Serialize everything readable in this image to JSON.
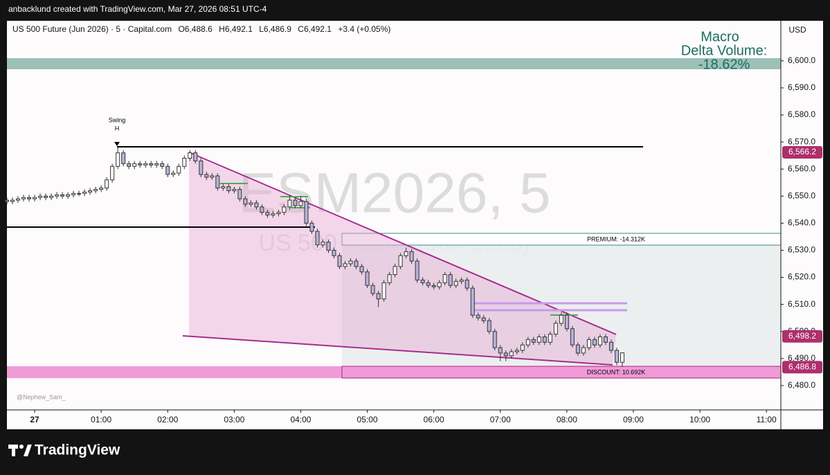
{
  "header": {
    "credit": "anbacklund created with TradingView.com, Mar 27, 2026 08:51 UTC-4"
  },
  "symbol_bar": {
    "symbol": "US 500 Future (Jun 2026) · 5 · Capital.com",
    "open": "O6,488.6",
    "high": "H6,492.1",
    "low": "L6,486.9",
    "close": "C6,492.1",
    "change": "+3.4 (+0.05%)"
  },
  "currency": "USD",
  "watermark": {
    "ticker": "ESM2026, 5",
    "name": "US 500 Future (Jun 2026)"
  },
  "indicator": {
    "line1": "Macro",
    "line2": "Delta Volume:",
    "line3": "-18.62%"
  },
  "labels": {
    "swing1": "Swing",
    "swing2": "H",
    "premium": "PREMIUM: -14.312K",
    "discount": "DISCOUNT: 10.692K",
    "author": "@Nephew_Sam_"
  },
  "footer": {
    "brand": "TradingView"
  },
  "chart_data": {
    "type": "candlestick",
    "xlim": [
      -25,
      673
    ],
    "ylim": [
      6471,
      6614.8
    ],
    "xticks": [
      {
        "value": 0,
        "label": "27"
      },
      {
        "value": 60,
        "label": "01:00"
      },
      {
        "value": 120,
        "label": "02:00"
      },
      {
        "value": 180,
        "label": "03:00"
      },
      {
        "value": 240,
        "label": "04:00"
      },
      {
        "value": 300,
        "label": "05:00"
      },
      {
        "value": 360,
        "label": "06:00"
      },
      {
        "value": 420,
        "label": "07:00"
      },
      {
        "value": 480,
        "label": "08:00"
      },
      {
        "value": 540,
        "label": "09:00"
      },
      {
        "value": 600,
        "label": "10:00"
      },
      {
        "value": 660,
        "label": "11:00"
      }
    ],
    "yticks": [
      {
        "value": 6480,
        "label": "6,480.0"
      },
      {
        "value": 6490,
        "label": "6,490.0"
      },
      {
        "value": 6500,
        "label": "6,500.0"
      },
      {
        "value": 6510,
        "label": "6,510.0"
      },
      {
        "value": 6520,
        "label": "6,520.0"
      },
      {
        "value": 6530,
        "label": "6,530.0"
      },
      {
        "value": 6540,
        "label": "6,540.0"
      },
      {
        "value": 6550,
        "label": "6,550.0"
      },
      {
        "value": 6560,
        "label": "6,560.0"
      },
      {
        "value": 6570,
        "label": "6,570.0"
      },
      {
        "value": 6580,
        "label": "6,580.0"
      },
      {
        "value": 6590,
        "label": "6,590.0"
      },
      {
        "value": 6600,
        "label": "6,600.0"
      }
    ],
    "price_tags": [
      {
        "value": 6566.2,
        "label": "6,566.2"
      },
      {
        "value": 6498.2,
        "label": "6,498.2"
      },
      {
        "value": 6486.8,
        "label": "6,486.8"
      }
    ],
    "tag_color": "#ad2f6b",
    "up_color": "#ffffff",
    "down_color": "#b7b3d9",
    "x": [
      -25,
      -20,
      -15,
      -10,
      -5,
      0,
      5,
      10,
      15,
      20,
      25,
      30,
      35,
      40,
      45,
      50,
      55,
      60,
      65,
      70,
      75,
      80,
      85,
      90,
      95,
      100,
      105,
      110,
      115,
      120,
      125,
      130,
      135,
      140,
      145,
      150,
      155,
      160,
      165,
      170,
      175,
      180,
      185,
      190,
      195,
      200,
      205,
      210,
      215,
      220,
      225,
      230,
      235,
      240,
      245,
      250,
      255,
      260,
      265,
      270,
      275,
      280,
      285,
      290,
      295,
      300,
      305,
      310,
      315,
      320,
      325,
      330,
      335,
      340,
      345,
      350,
      355,
      360,
      365,
      370,
      375,
      380,
      385,
      390,
      395,
      400,
      405,
      410,
      415,
      420,
      425,
      430,
      435,
      440,
      445,
      450,
      455,
      460,
      465,
      470,
      475,
      480,
      485,
      490,
      495,
      500,
      505,
      510,
      515,
      520,
      525,
      530
    ],
    "candles": [
      [
        6548.5,
        6549.5,
        6547,
        6548
      ],
      [
        6548,
        6549.5,
        6547,
        6548.5
      ],
      [
        6548.5,
        6550,
        6547.5,
        6549
      ],
      [
        6549,
        6550.5,
        6548,
        6549.5
      ],
      [
        6549.5,
        6550.5,
        6548,
        6549
      ],
      [
        6549,
        6550.5,
        6548,
        6549.5
      ],
      [
        6549.5,
        6551,
        6548.5,
        6550
      ],
      [
        6550,
        6551,
        6548.5,
        6549.5
      ],
      [
        6549.5,
        6551,
        6548.5,
        6550
      ],
      [
        6550,
        6551.5,
        6549,
        6550.5
      ],
      [
        6550.5,
        6551.5,
        6549,
        6550
      ],
      [
        6550,
        6551.5,
        6549,
        6550.5
      ],
      [
        6550.5,
        6552,
        6549.5,
        6551
      ],
      [
        6551,
        6552,
        6550,
        6551
      ],
      [
        6551,
        6552.5,
        6550,
        6551.5
      ],
      [
        6551.5,
        6553,
        6550.5,
        6552
      ],
      [
        6552,
        6553.5,
        6551,
        6552.5
      ],
      [
        6552.5,
        6554,
        6551.5,
        6553
      ],
      [
        6553,
        6557,
        6552,
        6556
      ],
      [
        6556,
        6562,
        6555,
        6561
      ],
      [
        6561,
        6568,
        6560,
        6566
      ],
      [
        6566,
        6567,
        6561,
        6562
      ],
      [
        6562,
        6563,
        6560,
        6561
      ],
      [
        6561,
        6563,
        6560,
        6562
      ],
      [
        6562,
        6563,
        6560.5,
        6561.5
      ],
      [
        6561.5,
        6563,
        6560.5,
        6562
      ],
      [
        6562,
        6563,
        6560.5,
        6561.5
      ],
      [
        6561.5,
        6563,
        6560.5,
        6562
      ],
      [
        6562,
        6563,
        6560,
        6561
      ],
      [
        6561,
        6562,
        6557,
        6558
      ],
      [
        6558,
        6559.5,
        6557,
        6558.5
      ],
      [
        6558.5,
        6562,
        6557.5,
        6561
      ],
      [
        6561,
        6565,
        6560,
        6564
      ],
      [
        6564,
        6567,
        6563,
        6566
      ],
      [
        6566,
        6567,
        6562,
        6563
      ],
      [
        6563,
        6564,
        6557,
        6558
      ],
      [
        6558,
        6559,
        6556,
        6557
      ],
      [
        6557,
        6558.5,
        6556,
        6557.5
      ],
      [
        6557.5,
        6558.5,
        6552,
        6553
      ],
      [
        6553,
        6554.5,
        6552,
        6553.5
      ],
      [
        6553.5,
        6554.5,
        6551,
        6552
      ],
      [
        6552,
        6553.5,
        6551,
        6552.5
      ],
      [
        6552.5,
        6553.5,
        6548,
        6549
      ],
      [
        6549,
        6550,
        6546,
        6547
      ],
      [
        6547,
        6548.5,
        6546,
        6547.5
      ],
      [
        6547.5,
        6548.5,
        6545,
        6546
      ],
      [
        6546,
        6547,
        6543,
        6544
      ],
      [
        6544,
        6545,
        6542,
        6543
      ],
      [
        6543,
        6544.5,
        6542,
        6543.5
      ],
      [
        6543.5,
        6545,
        6542.5,
        6544
      ],
      [
        6544,
        6547,
        6543,
        6546
      ],
      [
        6546,
        6550,
        6545,
        6548.5
      ],
      [
        6548.5,
        6549.5,
        6545.5,
        6546.5
      ],
      [
        6546.5,
        6550,
        6545.5,
        6548
      ],
      [
        6548,
        6549,
        6539,
        6540
      ],
      [
        6540,
        6541,
        6536,
        6537
      ],
      [
        6537,
        6538,
        6531,
        6532
      ],
      [
        6532,
        6534,
        6531,
        6533
      ],
      [
        6533,
        6534,
        6529,
        6530
      ],
      [
        6530,
        6531,
        6527,
        6528
      ],
      [
        6528,
        6529,
        6523,
        6524
      ],
      [
        6524,
        6526,
        6523,
        6525
      ],
      [
        6525,
        6527,
        6524,
        6526
      ],
      [
        6526,
        6527,
        6523,
        6524
      ],
      [
        6524,
        6525,
        6521,
        6522
      ],
      [
        6522,
        6523,
        6516,
        6517
      ],
      [
        6517,
        6518,
        6513,
        6514
      ],
      [
        6514,
        6515,
        6509,
        6512
      ],
      [
        6512,
        6519,
        6511,
        6518
      ],
      [
        6518,
        6522,
        6517,
        6521
      ],
      [
        6521,
        6525,
        6520,
        6524
      ],
      [
        6524,
        6529,
        6523,
        6528
      ],
      [
        6528,
        6531,
        6527,
        6529.5
      ],
      [
        6529.5,
        6530.5,
        6525,
        6526
      ],
      [
        6526,
        6527,
        6518,
        6519
      ],
      [
        6519,
        6520,
        6517,
        6518
      ],
      [
        6518,
        6519,
        6516,
        6517
      ],
      [
        6517,
        6518,
        6515.5,
        6516.5
      ],
      [
        6516.5,
        6519,
        6515.5,
        6518
      ],
      [
        6518,
        6522,
        6517,
        6521
      ],
      [
        6521,
        6522,
        6516,
        6517
      ],
      [
        6517,
        6519.5,
        6516,
        6518.5
      ],
      [
        6518.5,
        6520,
        6517.5,
        6519
      ],
      [
        6519,
        6520,
        6515,
        6516
      ],
      [
        6516,
        6517,
        6505,
        6506
      ],
      [
        6506,
        6507,
        6504,
        6505
      ],
      [
        6505,
        6506,
        6503,
        6504
      ],
      [
        6504,
        6505,
        6499,
        6500
      ],
      [
        6500,
        6501,
        6493,
        6494
      ],
      [
        6494,
        6495,
        6489,
        6492
      ],
      [
        6492,
        6493,
        6489,
        6491
      ],
      [
        6491,
        6493.5,
        6490,
        6492.5
      ],
      [
        6492.5,
        6494,
        6491.5,
        6493
      ],
      [
        6493,
        6496,
        6492,
        6495
      ],
      [
        6495,
        6498,
        6494,
        6497
      ],
      [
        6497,
        6498,
        6495,
        6496
      ],
      [
        6496,
        6499,
        6495,
        6498
      ],
      [
        6498,
        6499,
        6495,
        6496
      ],
      [
        6496,
        6500,
        6495,
        6499
      ],
      [
        6499,
        6504,
        6498,
        6503
      ],
      [
        6503,
        6507,
        6502,
        6506
      ],
      [
        6506,
        6507,
        6500,
        6501
      ],
      [
        6501,
        6502,
        6494,
        6495
      ],
      [
        6495,
        6496,
        6491,
        6492
      ],
      [
        6492,
        6495,
        6491,
        6494
      ],
      [
        6494,
        6498,
        6493,
        6497
      ],
      [
        6497,
        6498,
        6494,
        6495
      ],
      [
        6495,
        6499,
        6494,
        6498
      ],
      [
        6498,
        6499,
        6495,
        6496
      ],
      [
        6496,
        6497,
        6492,
        6493
      ],
      [
        6493,
        6494,
        6487.5,
        6488.6
      ],
      [
        6488.6,
        6492.1,
        6486.9,
        6492.1
      ]
    ]
  }
}
